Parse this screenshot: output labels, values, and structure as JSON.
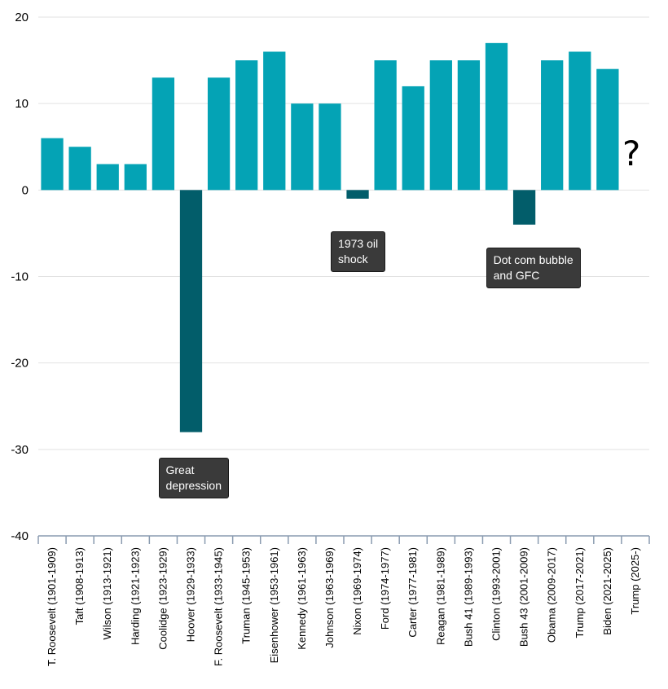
{
  "chart_data": {
    "type": "bar",
    "categories": [
      "T. Roosevelt (1901-1909)",
      "Taft (1908-1913)",
      "Wilson (1913-1921)",
      "Harding (1921-1923)",
      "Coolidge (1923-1929)",
      "Hoover (1929-1933)",
      "F. Roosevelt (1933-1945)",
      "Truman (1945-1953)",
      "Eisenhower (1953-1961)",
      "Kennedy (1961-1963)",
      "Johnson (1963-1969)",
      "Nixon (1969-1974)",
      "Ford (1974-1977)",
      "Carter (1977-1981)",
      "Reagan (1981-1989)",
      "Bush 41 (1989-1993)",
      "Clinton (1993-2001)",
      "Bush 43 (2001-2009)",
      "Obama (2009-2017)",
      "Trump (2017-2021)",
      "Biden (2021-2025)",
      "Trump (2025-)"
    ],
    "values": [
      6,
      5,
      3,
      3,
      13,
      -28,
      13,
      15,
      16,
      10,
      10,
      -1,
      15,
      12,
      15,
      15,
      17,
      -4,
      15,
      16,
      14,
      null
    ],
    "title": "",
    "xlabel": "",
    "ylabel": "",
    "ylim": [
      -40,
      20
    ],
    "yticks": [
      20,
      10,
      0,
      -10,
      -20,
      -30,
      -40
    ],
    "grid": true,
    "legend": "none",
    "colors": {
      "positive": "#04a3b5",
      "negative": "#025d6a",
      "grid": "#e2e2e2",
      "axis": "#8a9bb0"
    },
    "annotations": [
      {
        "text": "Great\ndepression",
        "category": "Hoover (1929-1933)"
      },
      {
        "text": "1973 oil\nshock",
        "category": "Nixon (1969-1974)"
      },
      {
        "text": "Dot com bubble\nand GFC",
        "category": "Bush 43 (2001-2009)"
      },
      {
        "text": "?",
        "category": "Trump (2025-)"
      }
    ]
  }
}
